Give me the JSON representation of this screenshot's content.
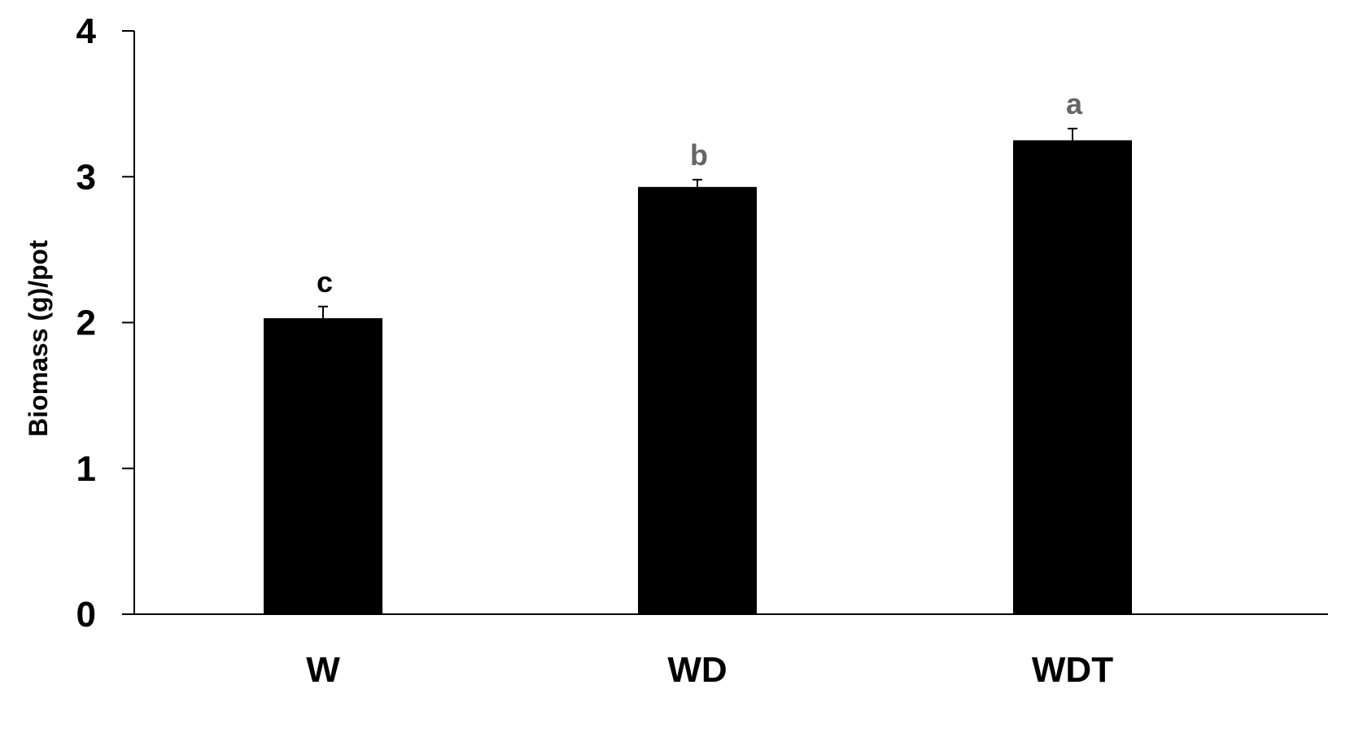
{
  "chart_data": {
    "type": "bar",
    "title": "",
    "xlabel": "",
    "ylabel": "Biomass (g)/pot",
    "ylim": [
      0,
      4
    ],
    "yticks": [
      "0",
      "1",
      "2",
      "3",
      "4"
    ],
    "grid": false,
    "categories": [
      "W",
      "WD",
      "WDT"
    ],
    "series": [
      {
        "values": [
          2.03,
          2.93,
          3.25
        ],
        "errors": [
          0.08,
          0.05,
          0.08
        ],
        "significance_labels": [
          "c",
          "b",
          "a"
        ]
      }
    ],
    "colors": {
      "bar": "#000000",
      "axis": "#000000",
      "sig_label_c": "#000000",
      "sig_label_b": "#666666",
      "sig_label_a": "#666666"
    }
  }
}
